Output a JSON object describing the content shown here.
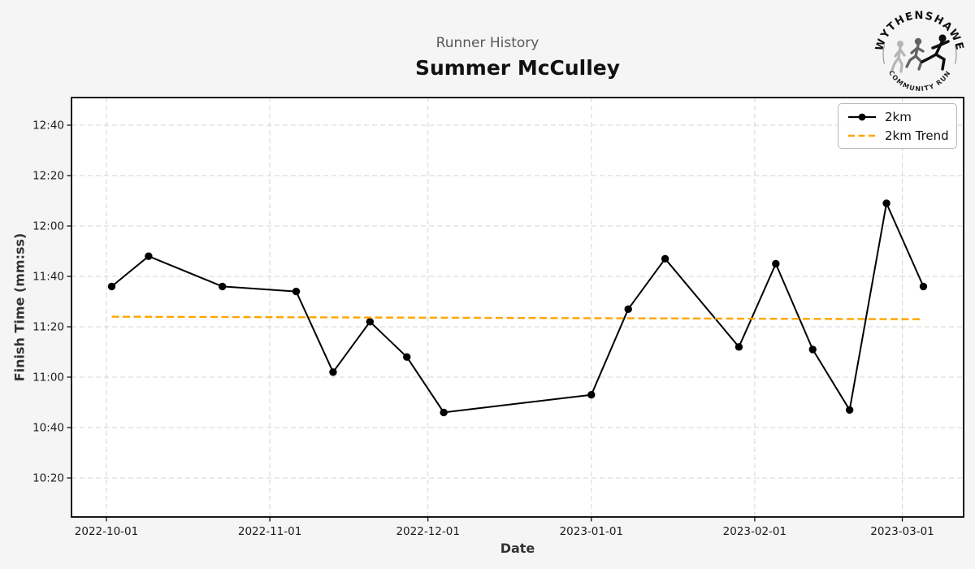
{
  "logo": {
    "top_text": "WYTHENSHAWE",
    "bottom_text": "COMMUNITY RUN"
  },
  "chart_data": {
    "type": "line",
    "suptitle": "Runner History",
    "title": "Summer McCulley",
    "xlabel": "Date",
    "ylabel": "Finish Time (mm:ss)",
    "grid": true,
    "legend_position": "upper right",
    "background_color": "#f5f5f5",
    "plot_background": "#ffffff",
    "gridline_color": "#d6d6d6",
    "x_ticks": [
      "2022-10-01",
      "2022-11-01",
      "2022-12-01",
      "2023-01-01",
      "2023-02-01",
      "2023-03-01"
    ],
    "y_ticks": [
      "10:20",
      "10:40",
      "11:00",
      "11:20",
      "11:40",
      "12:00",
      "12:20",
      "12:40"
    ],
    "xlim": [
      "2022-09-24",
      "2023-03-12"
    ],
    "ylim_mmss": [
      "10:05",
      "12:51"
    ],
    "series": [
      {
        "name": "2km",
        "color": "#000000",
        "style": "solid",
        "marker": "circle",
        "points": [
          {
            "date": "2022-10-02",
            "time": "11:36"
          },
          {
            "date": "2022-10-09",
            "time": "11:48"
          },
          {
            "date": "2022-10-23",
            "time": "11:36"
          },
          {
            "date": "2022-11-06",
            "time": "11:34"
          },
          {
            "date": "2022-11-13",
            "time": "11:02"
          },
          {
            "date": "2022-11-20",
            "time": "11:22"
          },
          {
            "date": "2022-11-27",
            "time": "11:08"
          },
          {
            "date": "2022-12-04",
            "time": "10:46"
          },
          {
            "date": "2023-01-01",
            "time": "10:53"
          },
          {
            "date": "2023-01-08",
            "time": "11:27"
          },
          {
            "date": "2023-01-15",
            "time": "11:47"
          },
          {
            "date": "2023-01-29",
            "time": "11:12"
          },
          {
            "date": "2023-02-05",
            "time": "11:45"
          },
          {
            "date": "2023-02-12",
            "time": "11:11"
          },
          {
            "date": "2023-02-19",
            "time": "10:47"
          },
          {
            "date": "2023-02-26",
            "time": "12:09"
          },
          {
            "date": "2023-03-05",
            "time": "11:36"
          }
        ]
      },
      {
        "name": "2km Trend",
        "color": "#FFA500",
        "style": "dashed",
        "marker": "none",
        "points": [
          {
            "date": "2022-10-02",
            "time": "11:24"
          },
          {
            "date": "2023-03-05",
            "time": "11:23"
          }
        ]
      }
    ]
  }
}
